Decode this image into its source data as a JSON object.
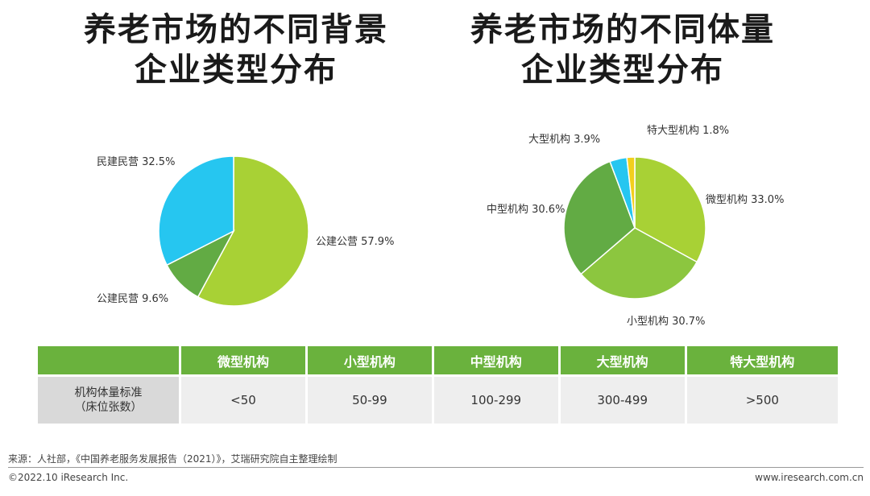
{
  "titles": {
    "left": [
      "养老市场的不同背景",
      "企业类型分布"
    ],
    "right": [
      "养老市场的不同体量",
      "企业类型分布"
    ]
  },
  "chart_data": [
    {
      "type": "pie",
      "title": "养老市场的不同背景企业类型分布",
      "slices": [
        {
          "label": "公建公营 57.9%",
          "value": 57.9,
          "color": "#a8d135"
        },
        {
          "label": "公建民营 9.6%",
          "value": 9.6,
          "color": "#62ab44"
        },
        {
          "label": "民建民营 32.5%",
          "value": 32.5,
          "color": "#26c6f0"
        }
      ]
    },
    {
      "type": "pie",
      "title": "养老市场的不同体量企业类型分布",
      "slices": [
        {
          "label": "微型机构 33.0%",
          "value": 33.0,
          "color": "#a8d135"
        },
        {
          "label": "小型机构 30.7%",
          "value": 30.7,
          "color": "#8cc63f"
        },
        {
          "label": "中型机构 30.6%",
          "value": 30.6,
          "color": "#62ab44"
        },
        {
          "label": "大型机构 3.9%",
          "value": 3.9,
          "color": "#26c6f0"
        },
        {
          "label": "特大型机构 1.8%",
          "value": 1.8,
          "color": "#f2cf1d"
        }
      ]
    }
  ],
  "table": {
    "headers": [
      "",
      "微型机构",
      "小型机构",
      "中型机构",
      "大型机构",
      "特大型机构"
    ],
    "row_label": [
      "机构体量标准",
      "（床位张数）"
    ],
    "values": [
      "<50",
      "50-99",
      "100-299",
      "300-499",
      ">500"
    ]
  },
  "footer": {
    "source": "来源：人社部，《中国养老服务发展报告（2021）》，艾瑞研究院自主整理绘制",
    "copyright": "©2022.10 iResearch Inc.",
    "website": "www.iresearch.com.cn"
  }
}
